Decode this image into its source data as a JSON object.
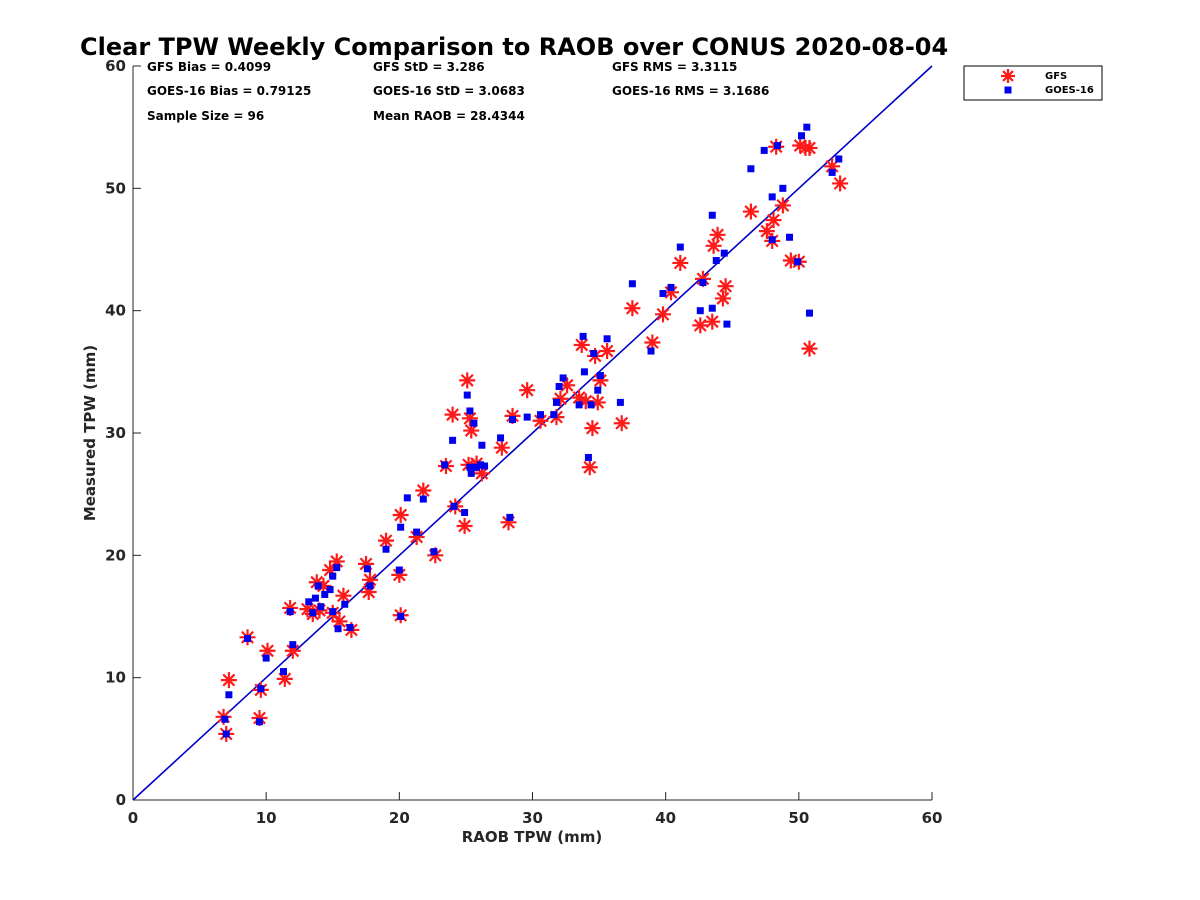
{
  "chart_data": {
    "type": "scatter",
    "title": "Clear TPW Weekly Comparison to RAOB over CONUS 2020-08-04",
    "xlabel": "RAOB TPW (mm)",
    "ylabel": "Measured TPW (mm)",
    "xlim": [
      0,
      60
    ],
    "ylim": [
      0,
      60
    ],
    "xticks": [
      0,
      10,
      20,
      30,
      40,
      50,
      60
    ],
    "yticks": [
      0,
      10,
      20,
      30,
      40,
      50,
      60
    ],
    "grid": false,
    "legend_position": "outside-top-right",
    "stats": [
      "GFS Bias = 0.4099",
      "GFS StD = 3.286",
      "GFS RMS = 3.3115",
      "GOES-16 Bias = 0.79125",
      "GOES-16 StD = 3.0683",
      "GOES-16 RMS = 3.1686",
      "Sample Size = 96",
      "Mean RAOB = 28.4344"
    ],
    "reference_line": {
      "name": "1:1 line",
      "x": [
        0,
        60
      ],
      "y": [
        0,
        60
      ],
      "color": "#0000cc"
    },
    "series": [
      {
        "name": "GFS",
        "marker": "asterisk",
        "color": "#ff1a1a",
        "points": [
          [
            6.8,
            6.8
          ],
          [
            7.0,
            5.4
          ],
          [
            7.2,
            9.8
          ],
          [
            8.6,
            13.3
          ],
          [
            9.5,
            6.7
          ],
          [
            9.6,
            9.0
          ],
          [
            10.1,
            12.2
          ],
          [
            11.4,
            9.9
          ],
          [
            11.8,
            15.7
          ],
          [
            12.0,
            12.2
          ],
          [
            13.1,
            15.6
          ],
          [
            13.5,
            15.2
          ],
          [
            13.8,
            17.8
          ],
          [
            14.0,
            15.5
          ],
          [
            14.3,
            17.5
          ],
          [
            14.8,
            18.8
          ],
          [
            15.0,
            15.3
          ],
          [
            15.3,
            19.5
          ],
          [
            15.5,
            14.6
          ],
          [
            15.8,
            16.7
          ],
          [
            16.4,
            13.9
          ],
          [
            17.5,
            19.3
          ],
          [
            17.7,
            17.0
          ],
          [
            17.8,
            18.0
          ],
          [
            19.0,
            21.2
          ],
          [
            20.0,
            18.4
          ],
          [
            20.1,
            15.1
          ],
          [
            20.1,
            23.3
          ],
          [
            21.3,
            21.5
          ],
          [
            21.8,
            25.3
          ],
          [
            22.7,
            20.0
          ],
          [
            23.5,
            27.3
          ],
          [
            24.0,
            31.5
          ],
          [
            24.2,
            24.0
          ],
          [
            24.9,
            22.4
          ],
          [
            25.1,
            34.3
          ],
          [
            25.2,
            27.4
          ],
          [
            25.3,
            31.2
          ],
          [
            25.4,
            30.2
          ],
          [
            25.8,
            27.5
          ],
          [
            26.2,
            26.7
          ],
          [
            27.7,
            28.8
          ],
          [
            28.2,
            22.7
          ],
          [
            28.5,
            31.4
          ],
          [
            29.6,
            33.5
          ],
          [
            30.6,
            31.0
          ],
          [
            31.8,
            31.3
          ],
          [
            32.1,
            32.8
          ],
          [
            32.6,
            33.9
          ],
          [
            33.5,
            32.9
          ],
          [
            33.7,
            37.2
          ],
          [
            34.0,
            32.6
          ],
          [
            34.3,
            27.2
          ],
          [
            34.5,
            30.4
          ],
          [
            34.7,
            36.3
          ],
          [
            34.9,
            32.5
          ],
          [
            35.1,
            34.3
          ],
          [
            35.6,
            36.7
          ],
          [
            36.7,
            30.8
          ],
          [
            37.5,
            40.2
          ],
          [
            39.0,
            37.4
          ],
          [
            39.8,
            39.7
          ],
          [
            40.4,
            41.5
          ],
          [
            41.1,
            43.9
          ],
          [
            42.6,
            38.8
          ],
          [
            42.8,
            42.6
          ],
          [
            43.5,
            39.1
          ],
          [
            43.6,
            45.3
          ],
          [
            43.9,
            46.2
          ],
          [
            44.3,
            41.0
          ],
          [
            44.5,
            42.0
          ],
          [
            46.4,
            48.1
          ],
          [
            47.6,
            46.5
          ],
          [
            48.0,
            45.7
          ],
          [
            48.1,
            47.4
          ],
          [
            48.3,
            53.4
          ],
          [
            48.8,
            48.6
          ],
          [
            49.4,
            44.1
          ],
          [
            50.0,
            44.0
          ],
          [
            50.1,
            53.5
          ],
          [
            50.5,
            53.3
          ],
          [
            50.8,
            53.3
          ],
          [
            50.8,
            36.9
          ],
          [
            52.5,
            51.8
          ],
          [
            53.1,
            50.4
          ]
        ]
      },
      {
        "name": "GOES-16",
        "marker": "square",
        "color": "#0000ee",
        "points": [
          [
            6.9,
            6.6
          ],
          [
            7.0,
            5.4
          ],
          [
            7.2,
            8.6
          ],
          [
            8.6,
            13.2
          ],
          [
            9.5,
            6.4
          ],
          [
            9.6,
            9.1
          ],
          [
            10.0,
            11.6
          ],
          [
            11.3,
            10.5
          ],
          [
            11.8,
            15.4
          ],
          [
            12.0,
            12.7
          ],
          [
            13.2,
            16.2
          ],
          [
            13.5,
            15.3
          ],
          [
            13.7,
            16.5
          ],
          [
            13.9,
            17.5
          ],
          [
            14.1,
            15.8
          ],
          [
            14.4,
            16.8
          ],
          [
            14.8,
            17.2
          ],
          [
            15.0,
            18.3
          ],
          [
            15.0,
            15.4
          ],
          [
            15.3,
            19.0
          ],
          [
            15.4,
            14.0
          ],
          [
            15.9,
            16.0
          ],
          [
            16.3,
            14.1
          ],
          [
            17.6,
            18.9
          ],
          [
            17.8,
            17.5
          ],
          [
            19.0,
            20.5
          ],
          [
            20.0,
            18.8
          ],
          [
            20.1,
            15.0
          ],
          [
            20.1,
            22.3
          ],
          [
            20.6,
            24.7
          ],
          [
            21.3,
            21.9
          ],
          [
            21.8,
            24.6
          ],
          [
            22.6,
            20.3
          ],
          [
            23.4,
            27.4
          ],
          [
            24.0,
            29.4
          ],
          [
            24.1,
            24.0
          ],
          [
            24.9,
            23.5
          ],
          [
            25.1,
            33.1
          ],
          [
            25.3,
            31.8
          ],
          [
            25.3,
            27.2
          ],
          [
            25.4,
            26.7
          ],
          [
            25.6,
            30.8
          ],
          [
            25.8,
            27.2
          ],
          [
            26.1,
            27.4
          ],
          [
            26.2,
            29.0
          ],
          [
            26.4,
            27.3
          ],
          [
            27.6,
            29.6
          ],
          [
            28.3,
            23.1
          ],
          [
            28.5,
            31.1
          ],
          [
            29.6,
            31.3
          ],
          [
            30.6,
            31.5
          ],
          [
            31.6,
            31.5
          ],
          [
            31.8,
            32.5
          ],
          [
            32.0,
            33.8
          ],
          [
            32.3,
            34.5
          ],
          [
            33.5,
            32.3
          ],
          [
            33.8,
            37.9
          ],
          [
            33.9,
            35.0
          ],
          [
            34.2,
            28.0
          ],
          [
            34.4,
            32.3
          ],
          [
            34.6,
            36.5
          ],
          [
            34.9,
            33.5
          ],
          [
            35.1,
            34.7
          ],
          [
            35.6,
            37.7
          ],
          [
            36.6,
            32.5
          ],
          [
            37.5,
            42.2
          ],
          [
            38.9,
            36.7
          ],
          [
            39.8,
            41.4
          ],
          [
            40.4,
            41.9
          ],
          [
            41.1,
            45.2
          ],
          [
            42.6,
            40.0
          ],
          [
            42.8,
            42.3
          ],
          [
            43.5,
            40.2
          ],
          [
            43.5,
            47.8
          ],
          [
            43.8,
            44.1
          ],
          [
            44.4,
            44.7
          ],
          [
            44.6,
            38.9
          ],
          [
            46.4,
            51.6
          ],
          [
            47.4,
            53.1
          ],
          [
            48.0,
            45.8
          ],
          [
            48.0,
            49.3
          ],
          [
            48.4,
            53.5
          ],
          [
            48.8,
            50.0
          ],
          [
            49.3,
            46.0
          ],
          [
            49.9,
            44.0
          ],
          [
            50.2,
            54.3
          ],
          [
            50.6,
            55.0
          ],
          [
            50.8,
            39.8
          ],
          [
            52.5,
            51.3
          ],
          [
            53.0,
            52.4
          ]
        ]
      }
    ]
  }
}
